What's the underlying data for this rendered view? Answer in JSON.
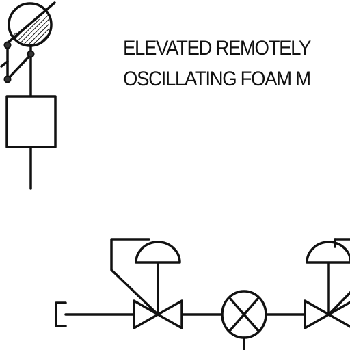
{
  "diagram": {
    "labels": {
      "line1": "ELEVATED REMOTELY",
      "line2": "OSCILLATING FOAM M"
    },
    "symbols": [
      {
        "name": "foam-nozzle-monitor",
        "kind": "hatched circle with actuator"
      },
      {
        "name": "control-box",
        "kind": "rectangle"
      },
      {
        "name": "control-valve-left",
        "kind": "diaphragm-actuated valve"
      },
      {
        "name": "strainer-valve",
        "kind": "circle with X"
      },
      {
        "name": "control-valve-right",
        "kind": "diaphragm-actuated valve"
      }
    ]
  }
}
